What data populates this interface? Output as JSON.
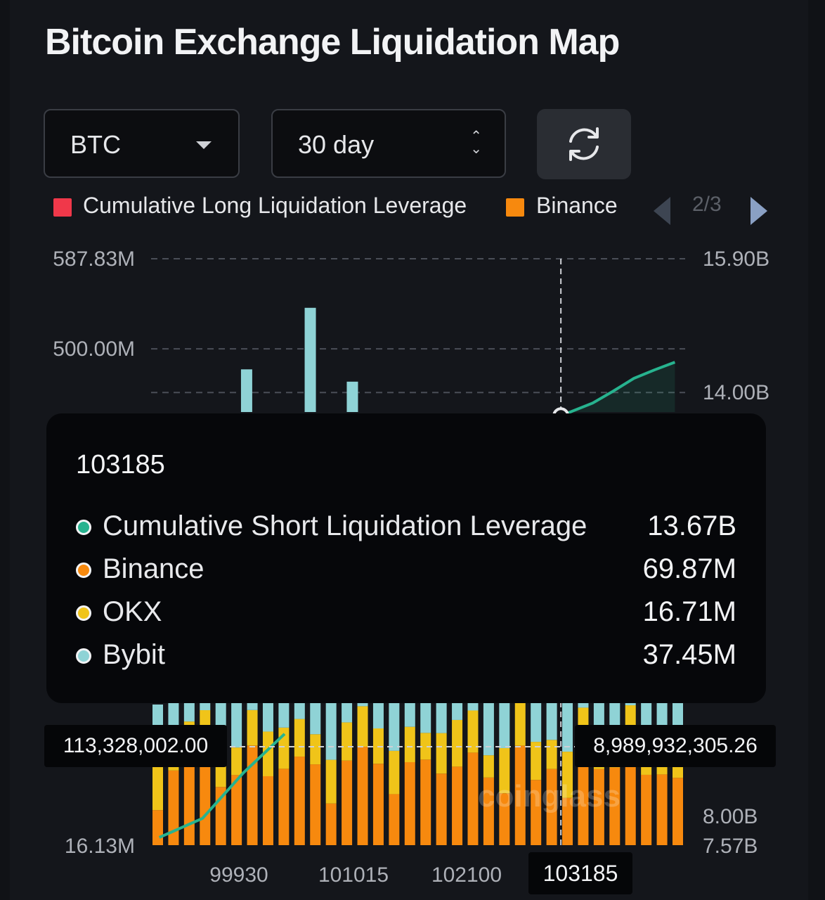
{
  "title": "Bitcoin Exchange Liquidation Map",
  "controls": {
    "coin": "BTC",
    "range": "30 day"
  },
  "legend": {
    "items": [
      {
        "label": "Cumulative Long Liquidation Leverage",
        "color": "#f0384a"
      },
      {
        "label": "Binance",
        "color": "#f7890e"
      }
    ],
    "page": "2/3"
  },
  "chart_data": {
    "type": "bar",
    "title": "Bitcoin Exchange Liquidation Map",
    "x_ticks": [
      "99930",
      "101015",
      "102100",
      "103185"
    ],
    "x_range": [
      99000,
      104200
    ],
    "left_axis": {
      "ticks": [
        "587.83M",
        "500.00M",
        "16.13M"
      ],
      "ylim_millions": [
        16.13,
        587.83
      ]
    },
    "right_axis": {
      "ticks": [
        "15.90B",
        "14.00B",
        "8.00B",
        "7.57B"
      ],
      "ylim_billions": [
        7.57,
        15.9
      ]
    },
    "series": [
      {
        "name": "Binance",
        "color": "#f7890e"
      },
      {
        "name": "OKX",
        "color": "#f0c419"
      },
      {
        "name": "Bybit",
        "color": "#8fd3d6"
      },
      {
        "name": "Cumulative Short Liquidation Leverage",
        "color": "#27b38f"
      }
    ],
    "tall_bybit_bars": [
      {
        "x": 99930,
        "value_m": 480
      },
      {
        "x": 100550,
        "value_m": 540
      },
      {
        "x": 100960,
        "value_m": 468
      }
    ],
    "cumulative_short_billions": [
      [
        102990,
        13.67
      ],
      [
        103300,
        13.85
      ],
      [
        103500,
        14.02
      ],
      [
        103700,
        14.2
      ],
      [
        103900,
        14.32
      ],
      [
        104100,
        14.43
      ]
    ],
    "cumulative_long_billions_bottom": [
      [
        99080,
        7.68
      ],
      [
        99500,
        7.95
      ],
      [
        99900,
        8.6
      ],
      [
        100300,
        9.15
      ]
    ],
    "crosshair_left": "113,328,002.00",
    "crosshair_right": "8,989,932,305.26"
  },
  "tooltip": {
    "title": "103185",
    "rows": [
      {
        "name": "Cumulative Short Liquidation Leverage",
        "value": "13.67B",
        "color": "#27b38f"
      },
      {
        "name": "Binance",
        "value": "69.87M",
        "color": "#f7890e"
      },
      {
        "name": "OKX",
        "value": "16.71M",
        "color": "#f0c419"
      },
      {
        "name": "Bybit",
        "value": "37.45M",
        "color": "#8fd3d6"
      }
    ]
  },
  "x_highlight": "103185",
  "watermark": "coinglass"
}
